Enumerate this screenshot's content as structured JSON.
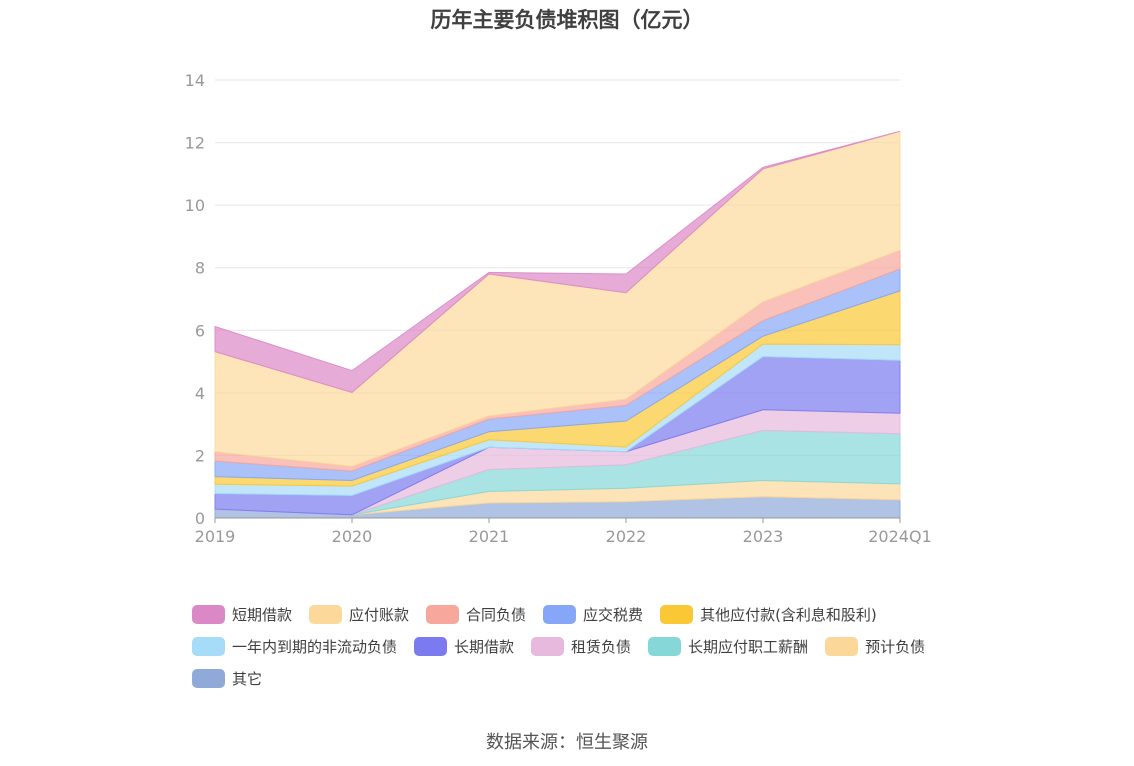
{
  "source": "数据来源：恒生聚源",
  "chart_data": {
    "type": "area",
    "stacked": true,
    "title": "历年主要负债堆积图（亿元）",
    "categories": [
      "2019",
      "2020",
      "2021",
      "2022",
      "2023",
      "2024Q1"
    ],
    "ylim": [
      0,
      14
    ],
    "yticks": [
      0,
      2,
      4,
      6,
      8,
      10,
      12,
      14
    ],
    "grid": true,
    "legend_position": "bottom",
    "series": [
      {
        "name": "其它",
        "color": "#8fa9d8",
        "values": [
          0.28,
          0.1,
          0.48,
          0.52,
          0.68,
          0.58
        ]
      },
      {
        "name": "预计负债",
        "color": "#fbd79a",
        "values": [
          0.0,
          0.0,
          0.37,
          0.43,
          0.52,
          0.51
        ]
      },
      {
        "name": "长期应付职工薪酬",
        "color": "#86d7d7",
        "values": [
          0.0,
          0.0,
          0.7,
          0.75,
          1.6,
          1.6
        ]
      },
      {
        "name": "租赁负债",
        "color": "#e7b9dc",
        "values": [
          0.0,
          0.0,
          0.71,
          0.42,
          0.66,
          0.66
        ]
      },
      {
        "name": "长期借款",
        "color": "#7b7bef",
        "values": [
          0.5,
          0.62,
          0.0,
          0.0,
          1.7,
          1.69
        ]
      },
      {
        "name": "一年内到期的非流动负债",
        "color": "#a6dcf7",
        "values": [
          0.3,
          0.3,
          0.24,
          0.15,
          0.4,
          0.5
        ]
      },
      {
        "name": "其他应付款(含利息和股利)",
        "color": "#fbc835",
        "values": [
          0.24,
          0.18,
          0.26,
          0.83,
          0.25,
          1.72
        ]
      },
      {
        "name": "应交税费",
        "color": "#86a6f7",
        "values": [
          0.5,
          0.3,
          0.4,
          0.5,
          0.5,
          0.7
        ]
      },
      {
        "name": "合同负债",
        "color": "#f7a79b",
        "values": [
          0.3,
          0.15,
          0.1,
          0.2,
          0.6,
          0.6
        ]
      },
      {
        "name": "应付账款",
        "color": "#fcd99b",
        "values": [
          3.2,
          2.36,
          4.54,
          3.4,
          4.25,
          3.8
        ]
      },
      {
        "name": "短期借款",
        "color": "#db88c6",
        "values": [
          0.8,
          0.7,
          0.05,
          0.6,
          0.05,
          0.0
        ]
      }
    ],
    "legend_order": [
      [
        "短期借款",
        "应付账款",
        "合同负债",
        "应交税费",
        "其他应付款(含利息和股利)"
      ],
      [
        "一年内到期的非流动负债",
        "长期借款",
        "租赁负债",
        "长期应付职工薪酬",
        "预计负债"
      ],
      [
        "其它"
      ]
    ]
  }
}
